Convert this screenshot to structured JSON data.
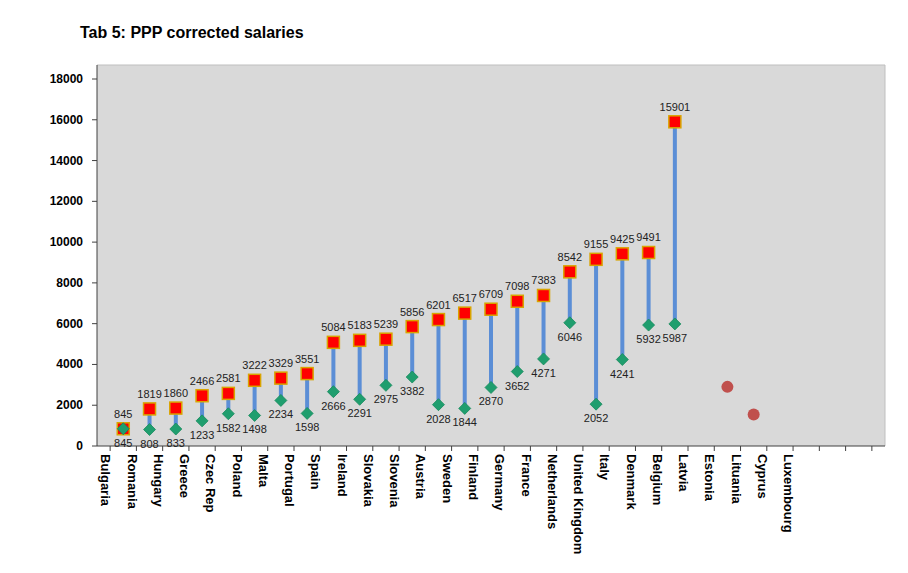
{
  "chart_data": {
    "type": "dumbbell",
    "title": "Tab 5: PPP corrected salaries",
    "categories": [
      "Bulgaria",
      "Romania",
      "Hungary",
      "Greece",
      "Czec Rep",
      "Poland",
      "Malta",
      "Portugal",
      "Spain",
      "Ireland",
      "Slovakia",
      "Slovenia",
      "Austria",
      "Sweden",
      "Finland",
      "Germany",
      "France",
      "Netherlands",
      "United Kingdom",
      "Italy",
      "Denmark",
      "Belgium",
      "Latvia",
      "Estonia",
      "Lituania",
      "Cyprus",
      "Luxembourg"
    ],
    "series": [
      {
        "color": "#ff0000",
        "marker": "square",
        "data_labels": true,
        "values": [
          845,
          1819,
          1860,
          2466,
          2581,
          3222,
          3329,
          3551,
          5084,
          5183,
          5239,
          5856,
          6201,
          6517,
          6709,
          7098,
          7383,
          8542,
          9155,
          9425,
          9491,
          15901,
          null,
          null,
          null,
          null,
          null
        ]
      },
      {
        "color": "#1f9e6e",
        "marker": "diamond",
        "data_labels": true,
        "values": [
          845,
          808,
          833,
          1233,
          1582,
          1498,
          2234,
          1598,
          2666,
          2291,
          2975,
          3382,
          2028,
          1844,
          2870,
          3652,
          4271,
          6046,
          2052,
          4241,
          5932,
          5987,
          null,
          null,
          null,
          null,
          null
        ]
      },
      {
        "color": "#c0504d",
        "marker": "circle",
        "data_labels": false,
        "values": [
          null,
          null,
          null,
          null,
          null,
          null,
          null,
          null,
          null,
          null,
          null,
          null,
          null,
          null,
          null,
          null,
          null,
          null,
          null,
          null,
          null,
          null,
          null,
          2900,
          1550,
          null,
          null
        ]
      }
    ],
    "ylim": [
      0,
      18000
    ],
    "yticks": [
      0,
      2000,
      4000,
      6000,
      8000,
      10000,
      12000,
      14000,
      16000,
      18000
    ],
    "grid": false
  }
}
